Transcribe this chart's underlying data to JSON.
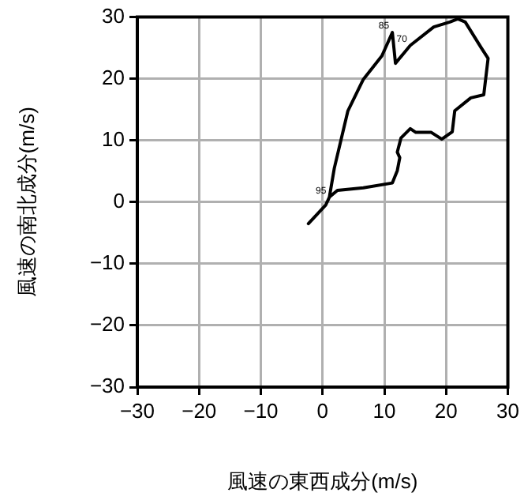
{
  "chart_data": {
    "type": "line",
    "xlabel": "風速の東西成分(m/s)",
    "ylabel": "風速の南北成分(m/s)",
    "xlim": [
      -30,
      30
    ],
    "ylim": [
      -30,
      30
    ],
    "xticks": [
      {
        "value": -30,
        "label": "−30"
      },
      {
        "value": -20,
        "label": "−20"
      },
      {
        "value": -10,
        "label": "−10"
      },
      0,
      10,
      20,
      30
    ],
    "yticks": [
      {
        "value": -30,
        "label": "−30"
      },
      {
        "value": -20,
        "label": "−20"
      },
      {
        "value": -10,
        "label": "−10"
      },
      0,
      10,
      20,
      30
    ],
    "grid": true,
    "legend": false,
    "marker": "none",
    "line_style": "solid",
    "series": [
      {
        "color": "#000000",
        "x": [
          -2.3,
          0.5,
          1.1,
          1.9,
          4.1,
          6.6,
          9.6,
          11.3,
          11.8,
          14.2,
          18,
          20.6,
          21.9,
          23.1,
          25.7,
          26.8,
          26.1,
          24,
          21.4,
          21,
          19.3,
          17.6,
          15.1,
          14.2,
          12.7,
          12.1,
          12.5,
          12.1,
          11.3,
          6.6,
          2.4,
          1.1
        ],
        "values": [
          -3.5,
          -0.5,
          0.8,
          5.5,
          14.8,
          19.9,
          23.7,
          27.5,
          22.5,
          25.4,
          28.4,
          29.2,
          29.7,
          29.2,
          25,
          23.3,
          17.4,
          16.9,
          14.8,
          11.4,
          10.2,
          11.3,
          11.3,
          11.9,
          10.4,
          8.1,
          7.2,
          5.1,
          3.1,
          2.3,
          1.9,
          0.8
        ]
      }
    ],
    "annotations": [
      {
        "text": "95",
        "x": 1.1,
        "y": 0.8
      },
      {
        "text": "85",
        "x": 11.3,
        "y": 27.5
      },
      {
        "text": "70",
        "x": 14.2,
        "y": 25.4
      }
    ]
  }
}
